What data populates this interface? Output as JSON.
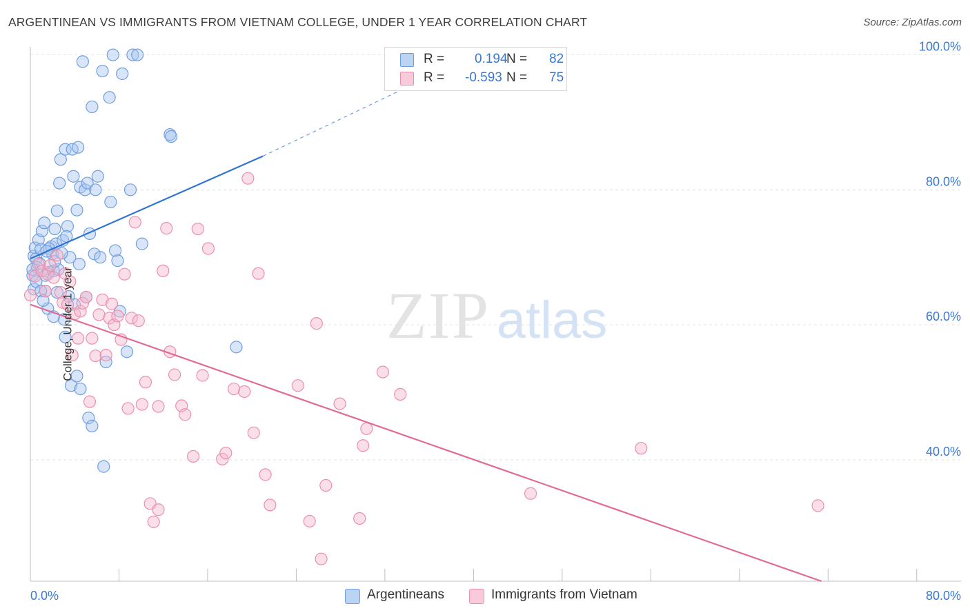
{
  "title": "ARGENTINEAN VS IMMIGRANTS FROM VIETNAM COLLEGE, UNDER 1 YEAR CORRELATION CHART",
  "source": "Source: ZipAtlas.com",
  "watermark": {
    "zip": "ZIP",
    "atlas": "atlas"
  },
  "stats": [
    {
      "r_label": "R =",
      "r_value": "0.194",
      "n_label": "N =",
      "n_value": "82"
    },
    {
      "r_label": "R =",
      "r_value": "-0.593",
      "n_label": "N =",
      "n_value": "75"
    }
  ],
  "legend": [
    {
      "label": "Argentineans"
    },
    {
      "label": "Immigrants from Vietnam"
    }
  ],
  "colors": {
    "blue_fill": "#a8c6f0",
    "blue_stroke": "#6f9ee0",
    "blue_line": "#2f74d0",
    "blue_text": "#3a78d4",
    "pink_fill": "#f6b9cc",
    "pink_stroke": "#eb8fae",
    "pink_line": "#e06a98",
    "grid": "#e2e2e2",
    "axis_text": "#3a78d4"
  },
  "chart_data": {
    "type": "scatter",
    "title": "ARGENTINEAN VS IMMIGRANTS FROM VIETNAM COLLEGE, UNDER 1 YEAR CORRELATION CHART",
    "xlabel": "",
    "ylabel": "College, Under 1 year",
    "xlim": [
      0,
      80
    ],
    "ylim": [
      22,
      102
    ],
    "x_tick_labels": [
      "0.0%",
      "80.0%"
    ],
    "y_ticks": [
      {
        "value": 100,
        "label": "100.0%"
      },
      {
        "value": 80,
        "label": "80.0%"
      },
      {
        "value": 60,
        "label": "60.0%"
      },
      {
        "value": 40,
        "label": "40.0%"
      }
    ],
    "grid": true,
    "legend_position": "bottom-center",
    "series": [
      {
        "name": "Argentineans",
        "r": 0.194,
        "n": 82,
        "trend": {
          "x0": 0,
          "y0": 69.8,
          "x1": 20,
          "y1": 85.0,
          "dash_to_x": 36,
          "dash_to_y": 98.2
        },
        "points": [
          [
            0.2,
            67.3
          ],
          [
            0.3,
            70.2
          ],
          [
            0.4,
            71.4
          ],
          [
            0.5,
            69.8
          ],
          [
            0.3,
            65.3
          ],
          [
            0.6,
            68.5
          ],
          [
            0.7,
            72.6
          ],
          [
            0.8,
            69.1
          ],
          [
            0.9,
            71.2
          ],
          [
            1.0,
            73.9
          ],
          [
            1.2,
            75.1
          ],
          [
            1.3,
            65.0
          ],
          [
            1.5,
            62.4
          ],
          [
            1.6,
            67.8
          ],
          [
            1.8,
            71.6
          ],
          [
            1.9,
            70.5
          ],
          [
            2.0,
            68.0
          ],
          [
            2.1,
            74.2
          ],
          [
            2.2,
            72.0
          ],
          [
            2.3,
            76.9
          ],
          [
            2.4,
            68.2
          ],
          [
            2.5,
            81.0
          ],
          [
            2.6,
            84.5
          ],
          [
            2.8,
            72.5
          ],
          [
            2.9,
            60.8
          ],
          [
            3.0,
            86.0
          ],
          [
            3.2,
            74.6
          ],
          [
            3.3,
            64.2
          ],
          [
            3.4,
            70.0
          ],
          [
            3.6,
            86.0
          ],
          [
            3.7,
            82.0
          ],
          [
            3.8,
            63.0
          ],
          [
            4.0,
            77.0
          ],
          [
            4.1,
            86.3
          ],
          [
            4.2,
            69.0
          ],
          [
            4.3,
            80.4
          ],
          [
            4.5,
            99.0
          ],
          [
            4.7,
            80.0
          ],
          [
            4.9,
            81.0
          ],
          [
            5.1,
            73.5
          ],
          [
            5.3,
            92.3
          ],
          [
            5.5,
            70.5
          ],
          [
            5.6,
            80.0
          ],
          [
            5.8,
            82.0
          ],
          [
            6.0,
            70.0
          ],
          [
            6.2,
            97.6
          ],
          [
            6.5,
            54.5
          ],
          [
            6.8,
            93.7
          ],
          [
            6.9,
            78.2
          ],
          [
            7.1,
            100.0
          ],
          [
            7.3,
            71.0
          ],
          [
            7.5,
            69.5
          ],
          [
            7.7,
            62.0
          ],
          [
            7.9,
            97.2
          ],
          [
            8.3,
            56.0
          ],
          [
            8.6,
            80.0
          ],
          [
            8.8,
            100.0
          ],
          [
            9.2,
            100.0
          ],
          [
            9.6,
            72.0
          ],
          [
            12.0,
            88.2
          ],
          [
            12.1,
            87.9
          ],
          [
            17.7,
            56.7
          ],
          [
            2.0,
            61.2
          ],
          [
            2.3,
            64.8
          ],
          [
            3.0,
            58.2
          ],
          [
            3.5,
            51.0
          ],
          [
            4.0,
            52.4
          ],
          [
            4.3,
            50.5
          ],
          [
            5.0,
            46.2
          ],
          [
            5.3,
            45.0
          ],
          [
            6.3,
            39.0
          ],
          [
            1.3,
            67.3
          ],
          [
            1.6,
            71.3
          ],
          [
            2.1,
            69.4
          ],
          [
            0.5,
            66.4
          ],
          [
            0.2,
            68.2
          ],
          [
            0.9,
            65.0
          ],
          [
            1.1,
            63.6
          ],
          [
            2.7,
            70.6
          ],
          [
            3.1,
            73.1
          ],
          [
            1.4,
            70.9
          ],
          [
            4.8,
            64.1
          ]
        ]
      },
      {
        "name": "Immigrants from Vietnam",
        "r": -0.593,
        "n": 75,
        "trend": {
          "x0": 0,
          "y0": 63.0,
          "x1": 68,
          "y1": 22.0
        },
        "points": [
          [
            0.0,
            64.4
          ],
          [
            0.4,
            67.2
          ],
          [
            0.7,
            69.0
          ],
          [
            1.0,
            68.0
          ],
          [
            1.3,
            65.0
          ],
          [
            1.5,
            67.5
          ],
          [
            1.7,
            68.8
          ],
          [
            2.0,
            67.0
          ],
          [
            2.3,
            70.3
          ],
          [
            2.6,
            64.8
          ],
          [
            2.8,
            63.3
          ],
          [
            3.0,
            67.6
          ],
          [
            3.2,
            63.0
          ],
          [
            3.4,
            66.4
          ],
          [
            3.6,
            55.5
          ],
          [
            3.8,
            61.6
          ],
          [
            4.1,
            58.0
          ],
          [
            4.3,
            62.0
          ],
          [
            4.5,
            63.2
          ],
          [
            4.8,
            64.1
          ],
          [
            5.1,
            48.6
          ],
          [
            5.3,
            58.0
          ],
          [
            5.6,
            55.4
          ],
          [
            5.9,
            61.5
          ],
          [
            6.2,
            63.7
          ],
          [
            6.5,
            55.5
          ],
          [
            6.8,
            61.0
          ],
          [
            7.0,
            63.1
          ],
          [
            7.2,
            60.0
          ],
          [
            7.5,
            61.3
          ],
          [
            7.8,
            57.8
          ],
          [
            8.1,
            67.5
          ],
          [
            8.4,
            47.6
          ],
          [
            8.7,
            61.0
          ],
          [
            9.0,
            75.2
          ],
          [
            9.3,
            60.6
          ],
          [
            9.6,
            48.2
          ],
          [
            9.9,
            51.5
          ],
          [
            10.3,
            33.5
          ],
          [
            10.6,
            30.8
          ],
          [
            11.0,
            47.9
          ],
          [
            11.4,
            68.0
          ],
          [
            11.7,
            74.3
          ],
          [
            12.0,
            56.0
          ],
          [
            12.4,
            52.6
          ],
          [
            13.0,
            48.0
          ],
          [
            13.3,
            46.7
          ],
          [
            14.0,
            40.5
          ],
          [
            14.4,
            74.2
          ],
          [
            14.8,
            52.5
          ],
          [
            15.3,
            71.3
          ],
          [
            16.5,
            40.1
          ],
          [
            16.8,
            41.0
          ],
          [
            17.5,
            50.5
          ],
          [
            18.4,
            50.1
          ],
          [
            18.7,
            81.7
          ],
          [
            19.2,
            44.0
          ],
          [
            19.6,
            67.6
          ],
          [
            20.2,
            37.8
          ],
          [
            20.6,
            33.3
          ],
          [
            23.0,
            51.0
          ],
          [
            24.0,
            30.9
          ],
          [
            24.6,
            60.2
          ],
          [
            25.0,
            25.3
          ],
          [
            25.4,
            36.2
          ],
          [
            26.6,
            48.3
          ],
          [
            28.3,
            31.3
          ],
          [
            28.6,
            42.1
          ],
          [
            28.9,
            44.6
          ],
          [
            30.3,
            53.0
          ],
          [
            31.8,
            49.7
          ],
          [
            43.0,
            35.0
          ],
          [
            52.5,
            41.7
          ],
          [
            67.7,
            33.2
          ],
          [
            11.0,
            32.6
          ]
        ]
      }
    ]
  }
}
